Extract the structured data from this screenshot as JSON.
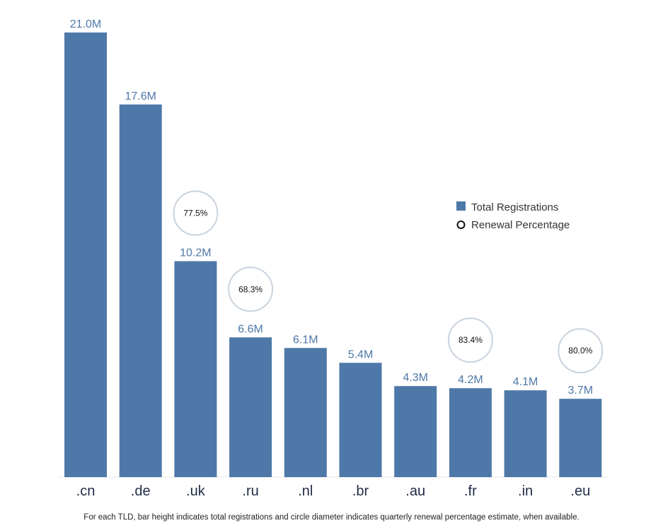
{
  "chart_data": {
    "type": "bar",
    "categories": [
      ".cn",
      ".de",
      ".uk",
      ".ru",
      ".nl",
      ".br",
      ".au",
      ".fr",
      ".in",
      ".eu"
    ],
    "series": [
      {
        "name": "Total Registrations",
        "values": [
          21.0,
          17.6,
          10.2,
          6.6,
          6.1,
          5.4,
          4.3,
          4.2,
          4.1,
          3.7
        ],
        "value_labels": [
          "21.0M",
          "17.6M",
          "10.2M",
          "6.6M",
          "6.1M",
          "5.4M",
          "4.3M",
          "4.2M",
          "4.1M",
          "3.7M"
        ],
        "color": "#4e78a8"
      },
      {
        "name": "Renewal Percentage",
        "values": [
          null,
          null,
          77.5,
          68.3,
          null,
          null,
          null,
          83.4,
          null,
          80.0
        ],
        "value_labels": [
          null,
          null,
          "77.5%",
          "68.3%",
          null,
          null,
          null,
          "83.4%",
          null,
          "80.0%"
        ],
        "color": "#c9d3de"
      }
    ],
    "ylim": [
      0,
      21
    ],
    "grid": false,
    "legend_position": "right",
    "caption": "For each TLD, bar height indicates total registrations and circle diameter indicates quarterly renewal percentage estimate, when available."
  }
}
